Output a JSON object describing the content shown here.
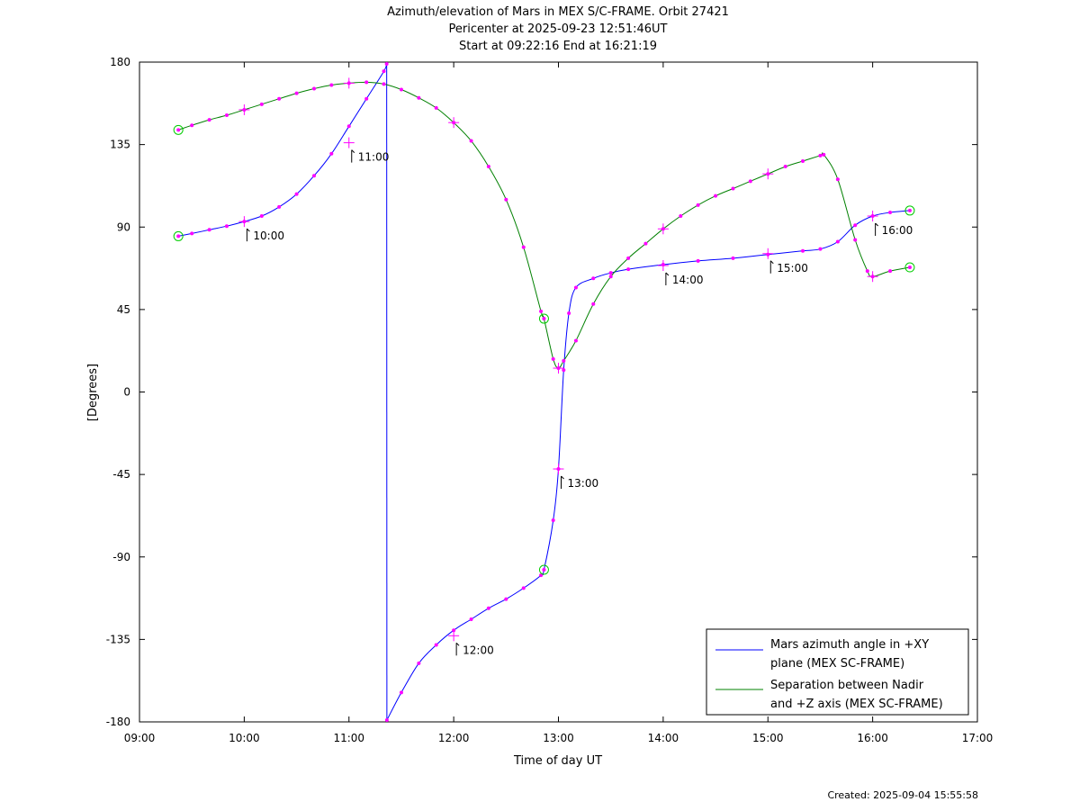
{
  "chart_data": {
    "type": "line",
    "title_lines": [
      "Azimuth/elevation of Mars in MEX S/C-FRAME.  Orbit 27421",
      "Pericenter at 2025-09-23 12:51:46UT",
      "Start at 09:22:16 End at 16:21:19"
    ],
    "xlabel": "Time of day UT",
    "ylabel": "[Degrees]",
    "xlim": [
      9,
      17
    ],
    "ylim": [
      -180,
      180
    ],
    "x_ticks": [
      "09:00",
      "10:00",
      "11:00",
      "12:00",
      "13:00",
      "14:00",
      "15:00",
      "16:00",
      "17:00"
    ],
    "y_ticks": [
      "180",
      "135",
      "90",
      "45",
      "0",
      "-45",
      "-90",
      "-135",
      "-180"
    ],
    "legend_position": "bottom-right",
    "series": [
      {
        "name": "Mars azimuth angle in +XY plane (MEX SC-FRAME)",
        "legend_lines": [
          "Mars azimuth angle in +XY",
          "plane (MEX SC-FRAME)"
        ],
        "color": "#0000ff",
        "x": [
          9.371,
          9.5,
          9.667,
          9.833,
          10.0,
          10.167,
          10.333,
          10.5,
          10.667,
          10.833,
          11.0,
          11.167,
          11.333,
          11.36,
          11.362,
          11.5,
          11.667,
          11.833,
          12.0,
          12.167,
          12.333,
          12.5,
          12.667,
          12.833,
          12.862,
          12.95,
          13.0,
          13.05,
          13.1,
          13.167,
          13.333,
          13.5,
          13.667,
          14.0,
          14.333,
          14.667,
          15.0,
          15.333,
          15.5,
          15.667,
          15.833,
          16.0,
          16.167,
          16.355
        ],
        "y": [
          85,
          86.5,
          88.5,
          90.5,
          93,
          96,
          101,
          108,
          118,
          130,
          145,
          160,
          175,
          179,
          -179,
          -164,
          -148,
          -138,
          -130,
          -124,
          -118,
          -113,
          -107,
          -100,
          -97,
          -70,
          -42,
          12,
          43,
          57,
          62,
          65,
          67,
          69.5,
          71.5,
          73,
          75,
          77,
          78,
          82,
          91,
          96,
          98,
          99
        ],
        "markers": [
          {
            "x": 9.371,
            "y": 85,
            "kind": "start"
          },
          {
            "x": 12.862,
            "y": -97,
            "kind": "pericenter"
          },
          {
            "x": 16.355,
            "y": 99,
            "kind": "end"
          }
        ],
        "hour_labels": [
          {
            "x": 10,
            "y": 93,
            "text": "10:00"
          },
          {
            "x": 11,
            "y": 136,
            "text": "11:00"
          },
          {
            "x": 12,
            "y": -133,
            "text": "12:00"
          },
          {
            "x": 13,
            "y": -42,
            "text": "13:00"
          },
          {
            "x": 14,
            "y": 69,
            "text": "14:00"
          },
          {
            "x": 15,
            "y": 75.5,
            "text": "15:00"
          },
          {
            "x": 16,
            "y": 96,
            "text": "16:00"
          }
        ]
      },
      {
        "name": "Separation between Nadir and +Z axis (MEX SC-FRAME)",
        "legend_lines": [
          "Separation between Nadir",
          "and +Z axis (MEX SC-FRAME)"
        ],
        "color": "#008000",
        "x": [
          9.371,
          9.5,
          9.667,
          9.833,
          10.0,
          10.167,
          10.333,
          10.5,
          10.667,
          10.833,
          11.0,
          11.167,
          11.333,
          11.5,
          11.667,
          11.833,
          12.0,
          12.167,
          12.333,
          12.5,
          12.667,
          12.833,
          12.862,
          12.95,
          13.0,
          13.05,
          13.167,
          13.333,
          13.5,
          13.667,
          13.833,
          14.0,
          14.167,
          14.333,
          14.5,
          14.667,
          14.833,
          15.0,
          15.167,
          15.333,
          15.5,
          15.533,
          15.667,
          15.833,
          15.95,
          16.0,
          16.167,
          16.355
        ],
        "y": [
          143,
          145.5,
          148.5,
          151,
          154,
          157,
          160,
          163,
          165.5,
          167.5,
          168.5,
          169,
          168,
          165,
          160.5,
          155,
          147,
          137,
          123,
          105,
          79,
          44,
          40,
          18,
          13,
          17,
          28,
          48,
          63,
          73,
          81,
          89,
          96,
          102,
          107,
          111,
          115,
          119,
          123,
          126,
          129,
          129.5,
          116,
          83,
          66,
          63,
          66,
          68
        ],
        "markers": [
          {
            "x": 9.371,
            "y": 143,
            "kind": "start"
          },
          {
            "x": 12.862,
            "y": 40,
            "kind": "pericenter"
          },
          {
            "x": 16.355,
            "y": 68,
            "kind": "end"
          }
        ],
        "hour_ticks": [
          {
            "x": 10,
            "y": 154
          },
          {
            "x": 11,
            "y": 168.5
          },
          {
            "x": 12,
            "y": 147
          },
          {
            "x": 13,
            "y": 13
          },
          {
            "x": 14,
            "y": 89
          },
          {
            "x": 15,
            "y": 119
          },
          {
            "x": 16,
            "y": 63
          }
        ]
      }
    ],
    "marker_color": "#ff00ff",
    "marker_ring_color": "#00cc00"
  },
  "footer": {
    "created": "Created: 2025-09-04 15:55:58"
  }
}
